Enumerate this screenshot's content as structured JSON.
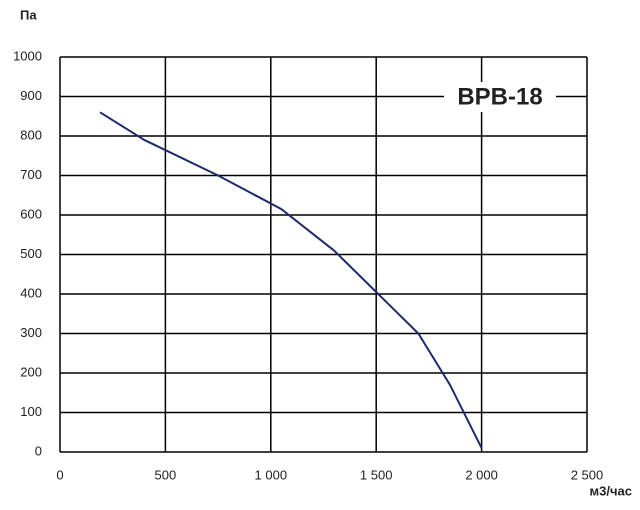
{
  "chart_data": {
    "type": "line",
    "y_label": "Па",
    "x_label": "м3/час",
    "annotation": "ВРВ-18",
    "x": [
      190,
      400,
      750,
      1050,
      1300,
      1500,
      1700,
      1850,
      2000
    ],
    "series": [
      {
        "color": "#1f2a6b",
        "values": [
          860,
          790,
          700,
          615,
          510,
          405,
          300,
          170,
          10
        ]
      }
    ],
    "xlim": [
      0,
      2500
    ],
    "xticks": [
      0,
      500,
      {
        "value": 1000,
        "label": "1 000"
      },
      {
        "value": 1500,
        "label": "1 500"
      },
      {
        "value": 2000,
        "label": "2 000"
      },
      {
        "value": 2500,
        "label": "2 500"
      }
    ],
    "ylim": [
      0,
      1000
    ],
    "yticks": [
      0,
      100,
      200,
      300,
      400,
      500,
      600,
      700,
      800,
      900,
      1000
    ],
    "grid": true
  }
}
